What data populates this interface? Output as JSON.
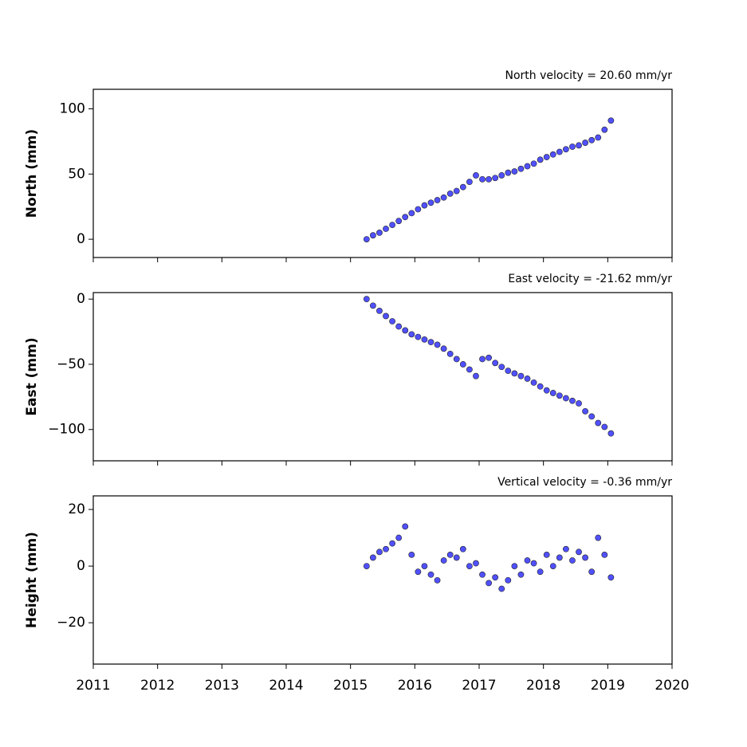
{
  "chart_data": [
    {
      "type": "scatter",
      "title": "North velocity = 20.60 mm/yr",
      "ylabel": "North (mm)",
      "color": "#5050ff",
      "xlim": [
        2011,
        2020
      ],
      "xticks": [
        2011,
        2012,
        2013,
        2014,
        2015,
        2016,
        2017,
        2018,
        2019,
        2020
      ],
      "ylim": [
        -14,
        115
      ],
      "yticks": [
        0,
        50,
        100
      ],
      "x": [
        2015.25,
        2015.35,
        2015.45,
        2015.55,
        2015.65,
        2015.75,
        2015.85,
        2015.95,
        2016.05,
        2016.15,
        2016.25,
        2016.35,
        2016.45,
        2016.55,
        2016.65,
        2016.75,
        2016.85,
        2016.95,
        2017.05,
        2017.15,
        2017.25,
        2017.35,
        2017.45,
        2017.55,
        2017.65,
        2017.75,
        2017.85,
        2017.95,
        2018.05,
        2018.15,
        2018.25,
        2018.35,
        2018.45,
        2018.55,
        2018.65,
        2018.75,
        2018.85,
        2018.95,
        2019.05
      ],
      "values": [
        0,
        3,
        5,
        8,
        11,
        14,
        17,
        20,
        23,
        26,
        28,
        30,
        32,
        35,
        37,
        40,
        44,
        49,
        46,
        46,
        47,
        49,
        51,
        52,
        54,
        56,
        58,
        61,
        63,
        65,
        67,
        69,
        71,
        72,
        74,
        76,
        78,
        84,
        91
      ]
    },
    {
      "type": "scatter",
      "title": "East velocity = -21.62 mm/yr",
      "ylabel": "East (mm)",
      "color": "#5050ff",
      "xlim": [
        2011,
        2020
      ],
      "xticks": [
        2011,
        2012,
        2013,
        2014,
        2015,
        2016,
        2017,
        2018,
        2019,
        2020
      ],
      "ylim": [
        -124,
        5
      ],
      "yticks": [
        {
          "value": -100,
          "label": "−100"
        },
        {
          "value": -50,
          "label": "−50"
        },
        0
      ],
      "x": [
        2015.25,
        2015.35,
        2015.45,
        2015.55,
        2015.65,
        2015.75,
        2015.85,
        2015.95,
        2016.05,
        2016.15,
        2016.25,
        2016.35,
        2016.45,
        2016.55,
        2016.65,
        2016.75,
        2016.85,
        2016.95,
        2017.05,
        2017.15,
        2017.25,
        2017.35,
        2017.45,
        2017.55,
        2017.65,
        2017.75,
        2017.85,
        2017.95,
        2018.05,
        2018.15,
        2018.25,
        2018.35,
        2018.45,
        2018.55,
        2018.65,
        2018.75,
        2018.85,
        2018.95,
        2019.05
      ],
      "values": [
        0,
        -5,
        -9,
        -13,
        -17,
        -21,
        -24,
        -27,
        -29,
        -31,
        -33,
        -35,
        -38,
        -42,
        -46,
        -50,
        -54,
        -59,
        -46,
        -45,
        -49,
        -52,
        -55,
        -57,
        -59,
        -61,
        -64,
        -67,
        -70,
        -72,
        -74,
        -76,
        -78,
        -80,
        -86,
        -90,
        -95,
        -98,
        -103
      ]
    },
    {
      "type": "scatter",
      "title": "Vertical velocity = -0.36 mm/yr",
      "ylabel": "Height (mm)",
      "color": "#5050ff",
      "xlim": [
        2011,
        2020
      ],
      "xticks": [
        2011,
        2012,
        2013,
        2014,
        2015,
        2016,
        2017,
        2018,
        2019,
        2020
      ],
      "ylim": [
        -34.6,
        24.8
      ],
      "yticks": [
        {
          "value": -20,
          "label": "−20"
        },
        0,
        20
      ],
      "x": [
        2015.25,
        2015.35,
        2015.45,
        2015.55,
        2015.65,
        2015.75,
        2015.85,
        2015.95,
        2016.05,
        2016.15,
        2016.25,
        2016.35,
        2016.45,
        2016.55,
        2016.65,
        2016.75,
        2016.85,
        2016.95,
        2017.05,
        2017.15,
        2017.25,
        2017.35,
        2017.45,
        2017.55,
        2017.65,
        2017.75,
        2017.85,
        2017.95,
        2018.05,
        2018.15,
        2018.25,
        2018.35,
        2018.45,
        2018.55,
        2018.65,
        2018.75,
        2018.85,
        2018.95,
        2019.05
      ],
      "values": [
        0,
        3,
        5,
        6,
        8,
        10,
        14,
        4,
        -2,
        0,
        -3,
        -5,
        2,
        4,
        3,
        6,
        0,
        1,
        -3,
        -6,
        -4,
        -8,
        -5,
        0,
        -3,
        2,
        1,
        -2,
        4,
        0,
        3,
        6,
        2,
        5,
        3,
        -2,
        10,
        4,
        -4
      ]
    }
  ]
}
